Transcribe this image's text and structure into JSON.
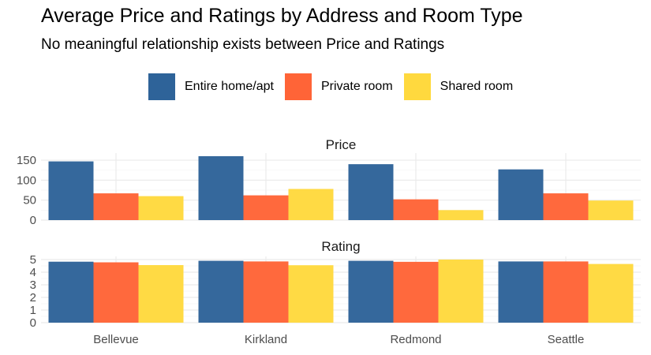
{
  "chart_data": {
    "type": "bar",
    "title": "Average Price and Ratings by Address and Room Type",
    "subtitle": "No meaningful relationship exists between Price and Ratings",
    "categories": [
      "Bellevue",
      "Kirkland",
      "Redmond",
      "Seattle"
    ],
    "legend_position": "top",
    "grid": true,
    "series": [
      {
        "name": "Entire home/apt",
        "color": "#2E6399"
      },
      {
        "name": "Private room",
        "color": "#FF6437"
      },
      {
        "name": "Shared room",
        "color": "#FFD93E"
      }
    ],
    "panels": [
      {
        "title": "Price",
        "ylim": [
          0,
          160
        ],
        "yticks": [
          0,
          50,
          100,
          150
        ],
        "values": [
          [
            147,
            67,
            60
          ],
          [
            160,
            62,
            78
          ],
          [
            140,
            52,
            25
          ],
          [
            127,
            67,
            49
          ]
        ]
      },
      {
        "title": "Rating",
        "ylim": [
          0,
          5
        ],
        "yticks": [
          0,
          1,
          2,
          3,
          4,
          5
        ],
        "values": [
          [
            4.83,
            4.78,
            4.56
          ],
          [
            4.9,
            4.85,
            4.55
          ],
          [
            4.9,
            4.82,
            5.0
          ],
          [
            4.85,
            4.85,
            4.65
          ]
        ]
      }
    ]
  }
}
